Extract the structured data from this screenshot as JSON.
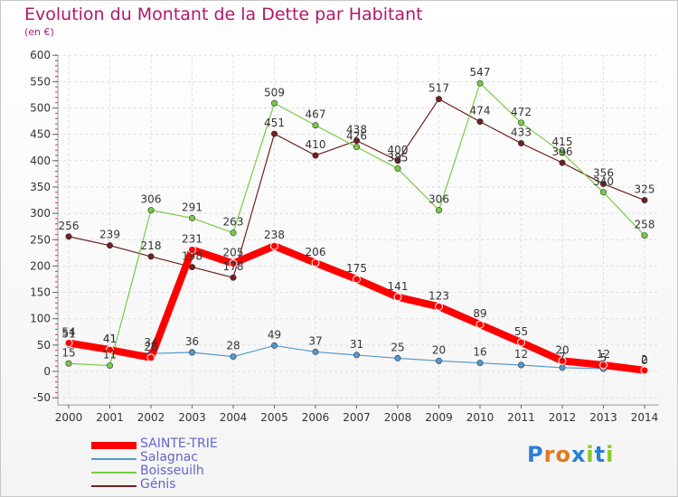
{
  "chart_data": {
    "type": "line",
    "title": "Evolution du Montant de la Dette par Habitant",
    "subtitle": "(en €)",
    "xlabel": "",
    "ylabel": "",
    "categories": [
      "2000",
      "2001",
      "2002",
      "2003",
      "2004",
      "2005",
      "2006",
      "2007",
      "2008",
      "2009",
      "2010",
      "2011",
      "2012",
      "2013",
      "2014"
    ],
    "ylim": [
      -50,
      600
    ],
    "yticks": [
      -50,
      0,
      50,
      100,
      150,
      200,
      250,
      300,
      350,
      400,
      450,
      500,
      550,
      600
    ],
    "grid": true,
    "legend_position": "bottom-left",
    "series": [
      {
        "name": "SAINTE-TRIE",
        "color": "#ff0000",
        "values": [
          54,
          41,
          26,
          231,
          205,
          238,
          206,
          175,
          141,
          123,
          89,
          55,
          20,
          12,
          2
        ],
        "labels": [
          "54",
          "41",
          "26",
          "231",
          "205",
          "238",
          "206",
          "175",
          "141",
          "123",
          "89",
          "55",
          "20",
          "12",
          "2"
        ]
      },
      {
        "name": "Salagnac",
        "color": "#5599cc",
        "values": [
          51,
          41,
          34,
          36,
          28,
          49,
          37,
          31,
          25,
          20,
          16,
          12,
          7,
          5,
          0
        ],
        "labels": [
          "51",
          "41",
          "34",
          "36",
          "28",
          "49",
          "37",
          "31",
          "25",
          "20",
          "16",
          "12",
          "7",
          "5",
          "0"
        ]
      },
      {
        "name": "Boisseuilh",
        "color": "#77cc44",
        "values": [
          15,
          11,
          306,
          291,
          263,
          509,
          467,
          426,
          385,
          306,
          547,
          472,
          415,
          340,
          258
        ],
        "labels": [
          "15",
          "11",
          "306",
          "291",
          "263",
          "509",
          "467",
          "426",
          "385",
          "306",
          "547",
          "472",
          "415",
          "340",
          "258"
        ]
      },
      {
        "name": "Génis",
        "color": "#702020",
        "values": [
          256,
          239,
          218,
          198,
          178,
          451,
          410,
          438,
          400,
          517,
          474,
          433,
          396,
          356,
          325
        ],
        "labels": [
          "256",
          "239",
          "218",
          "198",
          "178",
          "451",
          "410",
          "438",
          "400",
          "517",
          "474",
          "433",
          "396",
          "356",
          "325"
        ]
      }
    ]
  },
  "logo": {
    "text": "Proxiti"
  }
}
